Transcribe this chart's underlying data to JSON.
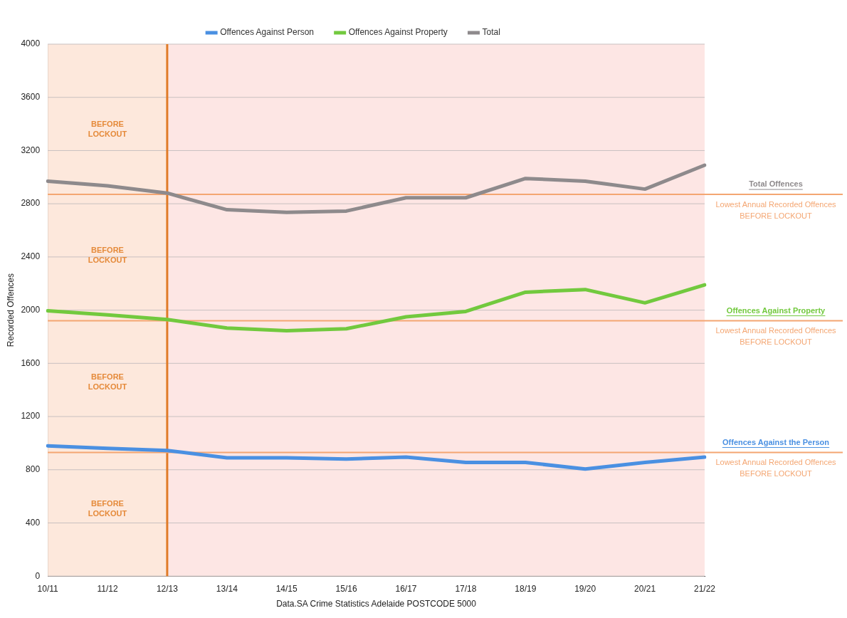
{
  "chart_data": {
    "type": "line",
    "xlabel": "Data.SA Crime Statistics Adelaide POSTCODE 5000",
    "ylabel": "Recorded Offences",
    "categories": [
      "10/11",
      "11/12",
      "12/13",
      "13/14",
      "14/15",
      "15/16",
      "16/17",
      "17/18",
      "18/19",
      "19/20",
      "20/21",
      "21/22"
    ],
    "series": [
      {
        "name": "Offences Against Person",
        "color": "#4a90e2",
        "values": [
          980,
          960,
          945,
          890,
          890,
          880,
          895,
          855,
          855,
          805,
          855,
          895
        ]
      },
      {
        "name": "Offences Against Property",
        "color": "#72c93e",
        "values": [
          1995,
          1965,
          1930,
          1865,
          1845,
          1860,
          1950,
          1990,
          2135,
          2155,
          2055,
          2190
        ]
      },
      {
        "name": "Total",
        "color": "#8e8a8c",
        "values": [
          2970,
          2935,
          2880,
          2755,
          2735,
          2745,
          2845,
          2845,
          2990,
          2970,
          2910,
          3090
        ]
      }
    ],
    "ylim": [
      0,
      4000
    ],
    "yticks": [
      0,
      400,
      800,
      1200,
      1600,
      2000,
      2400,
      2800,
      3200,
      3600,
      4000
    ],
    "grid": "y",
    "legend": "top",
    "marker": "none",
    "line_style": "solid",
    "bands": [
      {
        "axis": "x",
        "from": "10/11",
        "to": "12/13",
        "color": "#fde8dc"
      },
      {
        "axis": "x",
        "from": "12/13",
        "to": "21/22",
        "color": "#fde6e4"
      }
    ],
    "ref_lines": [
      {
        "axis": "x",
        "value": "12/13",
        "color": "#e07b28"
      },
      {
        "axis": "y",
        "value": 2870,
        "label": "Lowest Annual Recorded Offences BEFORE LOCKOUT",
        "color": "#f4a672"
      },
      {
        "axis": "y",
        "value": 1920,
        "label": "Lowest Annual Recorded Offences BEFORE LOCKOUT",
        "color": "#f4a672"
      },
      {
        "axis": "y",
        "value": 930,
        "label": "Lowest Annual Recorded Offences BEFORE LOCKOUT",
        "color": "#f4a672"
      }
    ],
    "annotations": [
      "Total Offences",
      "Offences Against Property",
      "Offences Against the Person",
      "BEFORE LOCKOUT",
      "BEFORE LOCKOUT",
      "BEFORE LOCKOUT",
      "BEFORE LOCKOUT"
    ]
  }
}
